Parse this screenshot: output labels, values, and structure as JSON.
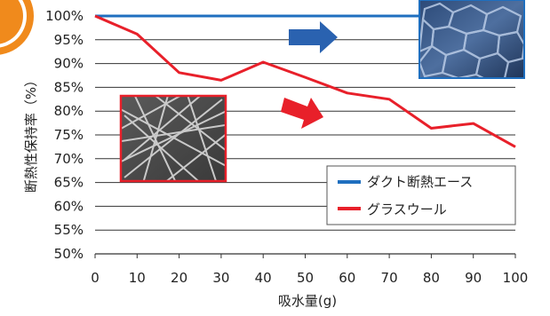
{
  "chart_data": {
    "type": "line",
    "xlabel": "吸水量(g)",
    "ylabel": "断熱性保持率（%）",
    "x": [
      0,
      10,
      20,
      30,
      40,
      50,
      60,
      70,
      80,
      90,
      100
    ],
    "xlim": [
      0,
      100
    ],
    "ylim": [
      50,
      100
    ],
    "x_ticks": [
      "0",
      "10",
      "20",
      "30",
      "40",
      "50",
      "60",
      "70",
      "80",
      "90",
      "100"
    ],
    "y_ticks": [
      "50%",
      "55%",
      "60%",
      "65%",
      "70%",
      "75%",
      "80%",
      "85%",
      "90%",
      "95%",
      "100%"
    ],
    "grid": "horizontal",
    "legend_position": "bottom-right",
    "series": [
      {
        "name": "ダクト断熱エース",
        "color": "#1f6fbf",
        "values": [
          100,
          100,
          100,
          100,
          100,
          100,
          100,
          100,
          100,
          100,
          100
        ]
      },
      {
        "name": "グラスウール",
        "color": "#e8202a",
        "values": [
          100,
          96.2,
          88.1,
          86.5,
          90.3,
          87.1,
          83.8,
          82.5,
          76.4,
          77.4,
          72.5
        ]
      }
    ],
    "annotations": [
      {
        "type": "arrow",
        "color": "#2a62b0",
        "target_series": "ダクト断熱エース"
      },
      {
        "type": "arrow",
        "color": "#e8202a",
        "target_series": "グラスウール"
      },
      {
        "type": "image",
        "description": "foam-cell-photo"
      },
      {
        "type": "image",
        "description": "glass-fiber-photo"
      }
    ]
  }
}
